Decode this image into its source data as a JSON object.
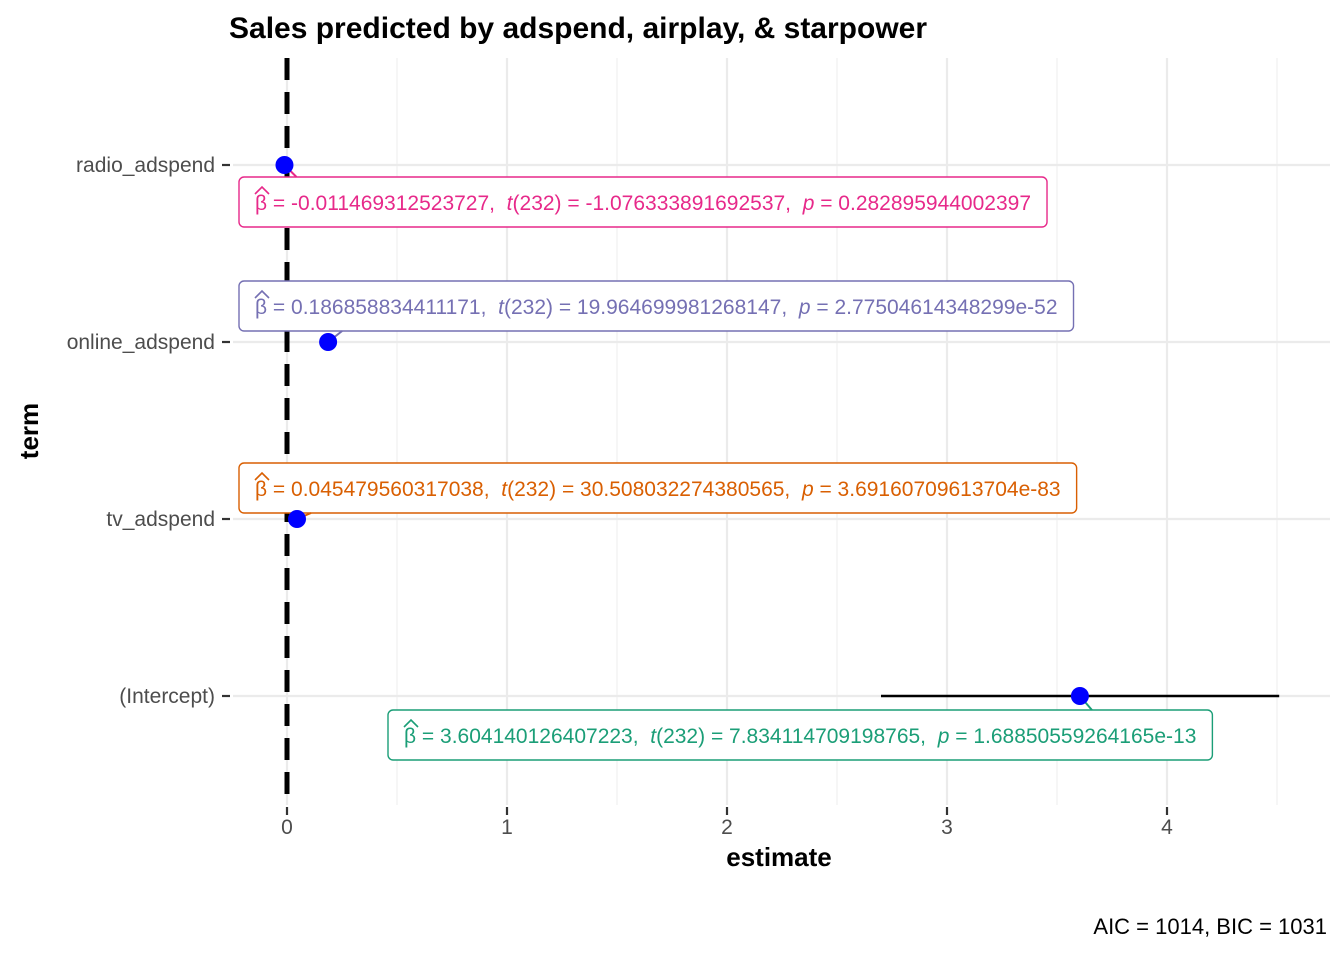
{
  "chart_data": {
    "type": "dot-whisker",
    "title": "Sales predicted by adspend, airplay, & starpower",
    "xlabel": "estimate",
    "ylabel": "term",
    "xlim": [
      -0.2,
      4.75
    ],
    "xticks": [
      0,
      1,
      2,
      3,
      4
    ],
    "xtick_labels": [
      "0",
      "1",
      "2",
      "3",
      "4"
    ],
    "reference_line_x": 0,
    "caption": "AIC = 1014, BIC = 1031",
    "point_color": "#0000ff",
    "terms": [
      {
        "term": "radio_adspend",
        "estimate": -0.011469312523727,
        "conf_low": -0.0325,
        "conf_high": 0.0095,
        "label_color": "#e7298a",
        "label": {
          "beta": "β",
          "est": " = -0.011469312523727,",
          "t": "t",
          "df": "(232)",
          "tval": " = -1.076333891692537,",
          "p": "p",
          "pval": " = 0.282895944002397"
        }
      },
      {
        "term": "online_adspend",
        "estimate": 0.186858834411171,
        "conf_low": 0.1684,
        "conf_high": 0.2053,
        "label_color": "#7570b3",
        "label": {
          "beta": "β",
          "est": " = 0.186858834411171,",
          "t": "t",
          "df": "(232)",
          "tval": " = 19.964699981268147,",
          "p": "p",
          "pval": " = 2.77504614348299e-52"
        }
      },
      {
        "term": "tv_adspend",
        "estimate": 0.045479560317038,
        "conf_low": 0.0425,
        "conf_high": 0.0484,
        "label_color": "#d95f02",
        "label": {
          "beta": "β",
          "est": " = 0.045479560317038,",
          "t": "t",
          "df": "(232)",
          "tval": " = 30.508032274380565,",
          "p": "p",
          "pval": " = 3.69160709613704e-83"
        }
      },
      {
        "term": "(Intercept)",
        "estimate": 3.604140126407223,
        "conf_low": 2.7,
        "conf_high": 4.51,
        "label_color": "#1b9e77",
        "label": {
          "beta": "β",
          "est": " = 3.604140126407223,",
          "t": "t",
          "df": "(232)",
          "tval": " = 7.834114709198765,",
          "p": "p",
          "pval": " = 1.68850559264165e-13"
        }
      }
    ]
  }
}
